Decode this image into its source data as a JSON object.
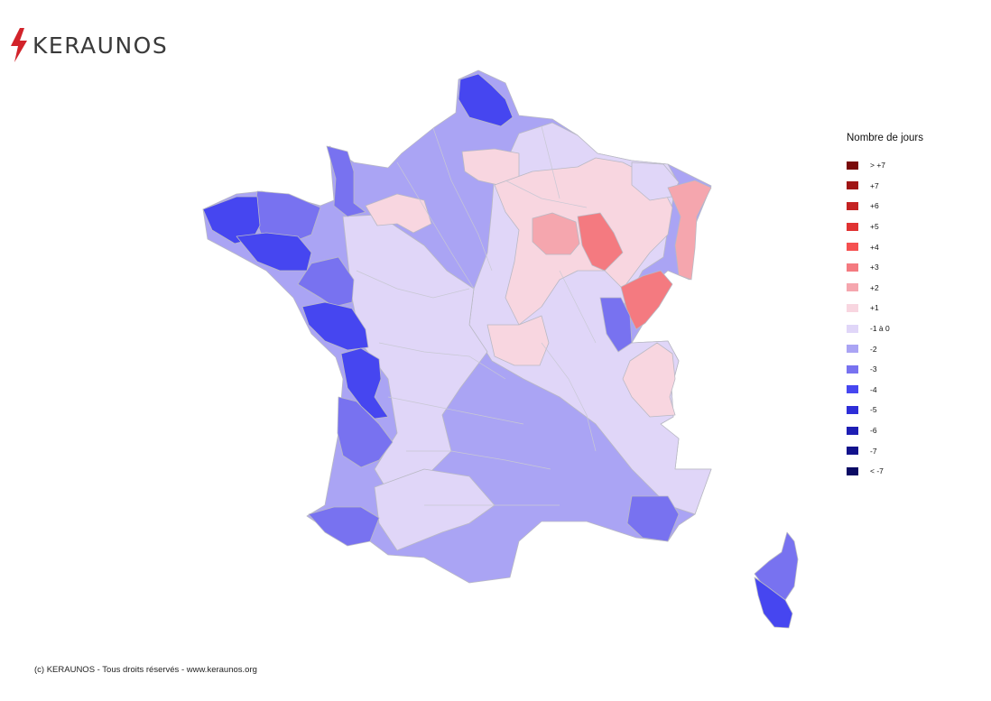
{
  "brand": {
    "name": "KERAUNOS",
    "accent_color": "#d2232a",
    "icon": "lightning-bolt-icon"
  },
  "legend": {
    "title": "Nombre de jours",
    "items": [
      {
        "label": "> +7",
        "color": "#7a0a0a"
      },
      {
        "label": "+7",
        "color": "#a01515"
      },
      {
        "label": "+6",
        "color": "#c42222"
      },
      {
        "label": "+5",
        "color": "#e03232"
      },
      {
        "label": "+4",
        "color": "#f55050"
      },
      {
        "label": "+3",
        "color": "#f47a80"
      },
      {
        "label": "+2",
        "color": "#f5a6ae"
      },
      {
        "label": "+1",
        "color": "#f8d6e0"
      },
      {
        "label": "-1 à 0",
        "color": "#e0d6f8"
      },
      {
        "label": "-2",
        "color": "#aaa4f4"
      },
      {
        "label": "-3",
        "color": "#7872f0"
      },
      {
        "label": "-4",
        "color": "#4646f0"
      },
      {
        "label": "-5",
        "color": "#2e2ed8"
      },
      {
        "label": "-6",
        "color": "#1e1eb4"
      },
      {
        "label": "-7",
        "color": "#12128c"
      },
      {
        "label": "< -7",
        "color": "#0a0a64"
      }
    ]
  },
  "footer": {
    "text": "(c) KERAUNOS - Tous droits réservés - www.keraunos.org"
  }
}
